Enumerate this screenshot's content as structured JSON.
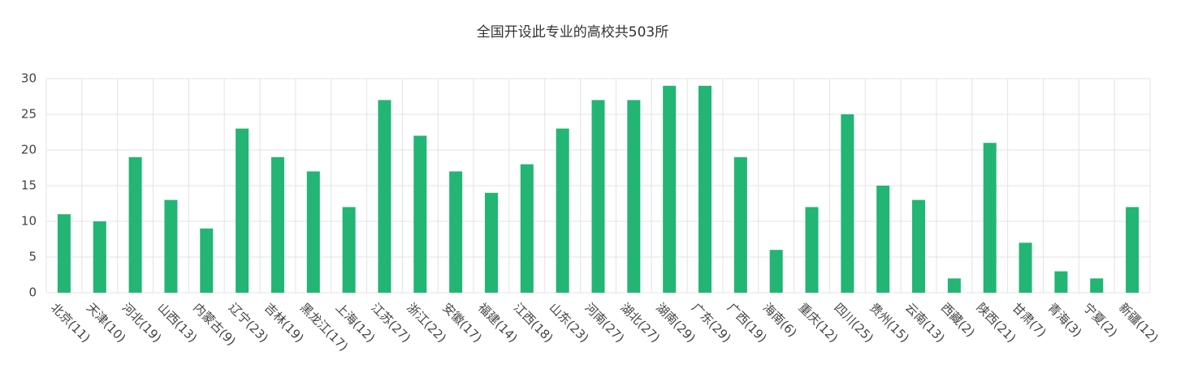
{
  "chart_data": {
    "type": "bar",
    "title": "全国开设此专业的高校共503所",
    "categories": [
      "北京(11)",
      "天津(10)",
      "河北(19)",
      "山西(13)",
      "内蒙古(9)",
      "辽宁(23)",
      "吉林(19)",
      "黑龙江(17)",
      "上海(12)",
      "江苏(27)",
      "浙江(22)",
      "安徽(17)",
      "福建(14)",
      "江西(18)",
      "山东(23)",
      "河南(27)",
      "湖北(27)",
      "湖南(29)",
      "广东(29)",
      "广西(19)",
      "海南(6)",
      "重庆(12)",
      "四川(25)",
      "贵州(15)",
      "云南(13)",
      "西藏(2)",
      "陕西(21)",
      "甘肃(7)",
      "青海(3)",
      "宁夏(2)",
      "新疆(12)"
    ],
    "values": [
      11,
      10,
      19,
      13,
      9,
      23,
      19,
      17,
      12,
      27,
      22,
      17,
      14,
      18,
      23,
      27,
      27,
      29,
      29,
      19,
      6,
      12,
      25,
      15,
      13,
      2,
      21,
      7,
      3,
      2,
      12
    ],
    "color": "#22b574",
    "ylim": [
      0,
      30
    ],
    "yticks": [
      0,
      5,
      10,
      15,
      20,
      25,
      30
    ],
    "grid": true
  }
}
